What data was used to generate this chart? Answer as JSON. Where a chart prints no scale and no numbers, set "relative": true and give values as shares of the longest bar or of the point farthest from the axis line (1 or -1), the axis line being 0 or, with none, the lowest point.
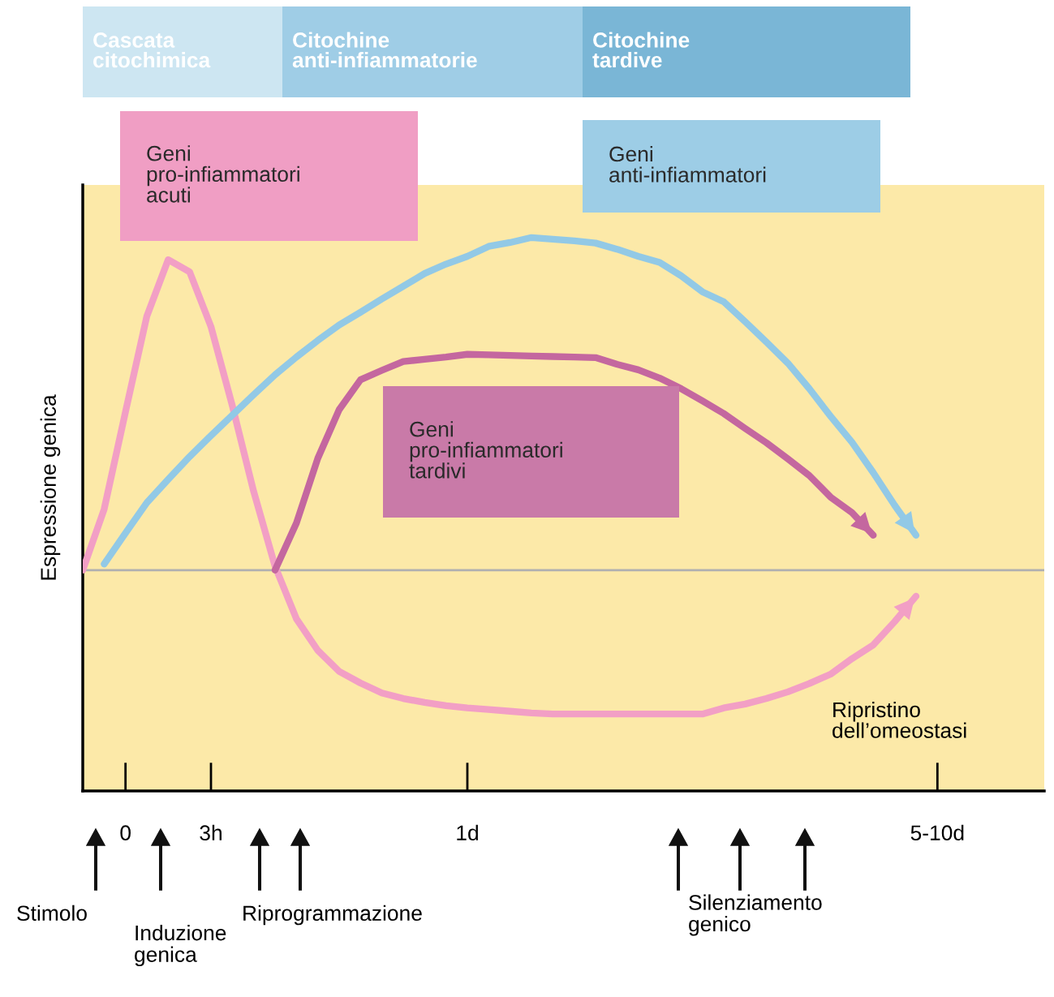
{
  "chart_data": {
    "type": "line",
    "relative": true,
    "ylabel": "Espressione genica",
    "categories": [
      null,
      null,
      "0",
      null,
      null,
      null,
      "3h",
      null,
      null,
      null,
      null,
      null,
      null,
      null,
      null,
      null,
      null,
      null,
      "1d",
      null,
      null,
      null,
      null,
      null,
      null,
      null,
      null,
      null,
      null,
      null,
      null,
      null,
      null,
      null,
      null,
      null,
      null,
      null,
      null,
      null,
      "5-10d",
      null,
      null,
      null,
      null
    ],
    "grid": false,
    "legend": false,
    "marker": "none",
    "line_style": "solid",
    "series": [
      {
        "name": "Geni\npro-infiammatori\nacuti",
        "color": "#f29fc5",
        "values": [
          0.399,
          0.509,
          0.685,
          0.858,
          0.96,
          0.938,
          0.839,
          0.696,
          0.541,
          0.406,
          0.311,
          0.254,
          0.216,
          0.195,
          0.177,
          0.167,
          0.16,
          0.154,
          0.15,
          0.147,
          0.144,
          0.141,
          0.139,
          0.139,
          0.139,
          0.139,
          0.139,
          0.139,
          0.139,
          0.139,
          0.15,
          0.157,
          0.167,
          0.179,
          0.194,
          0.211,
          0.239,
          0.264,
          0.306,
          0.352,
          null,
          null,
          null,
          null,
          null
        ]
      },
      {
        "name": "Geni\nanti-infiammatori",
        "color": "#92c9e6",
        "values": [
          null,
          0.41,
          0.466,
          0.521,
          0.563,
          0.604,
          0.642,
          0.679,
          0.716,
          0.752,
          0.784,
          0.814,
          0.842,
          0.865,
          0.889,
          0.912,
          0.935,
          0.952,
          0.966,
          0.984,
          0.991,
          1.0,
          0.997,
          0.994,
          0.99,
          0.979,
          0.966,
          0.955,
          0.931,
          0.902,
          0.884,
          0.848,
          0.811,
          0.773,
          0.727,
          0.677,
          0.63,
          0.575,
          0.516,
          0.462,
          null,
          null,
          null,
          null,
          null
        ]
      },
      {
        "name": "Geni\npro-infiammatori\ntardivi",
        "color": "#c4679f",
        "values": [
          null,
          null,
          null,
          null,
          null,
          null,
          null,
          null,
          null,
          0.399,
          0.484,
          0.601,
          0.689,
          0.743,
          0.76,
          0.776,
          0.78,
          0.784,
          0.789,
          0.788,
          0.787,
          0.786,
          0.785,
          0.784,
          0.783,
          0.771,
          0.761,
          0.746,
          0.727,
          0.705,
          0.682,
          0.655,
          0.629,
          0.6,
          0.57,
          0.531,
          0.503,
          0.462,
          null,
          null,
          null,
          null,
          null,
          null,
          null
        ]
      }
    ],
    "ref_lines": [
      {
        "axis": "y",
        "value": 0.399,
        "color": "#b0b0b0"
      }
    ],
    "annotations": [
      "Cascata\ncitochimica",
      "Citochine\nanti-infiammatorie",
      "Citochine\ntardive",
      "Stimolo",
      "Induzione\ngenica",
      "Riprogrammazione",
      "Silenziamento\ngenico",
      "Ripristino\ndell’omeostasi"
    ]
  }
}
